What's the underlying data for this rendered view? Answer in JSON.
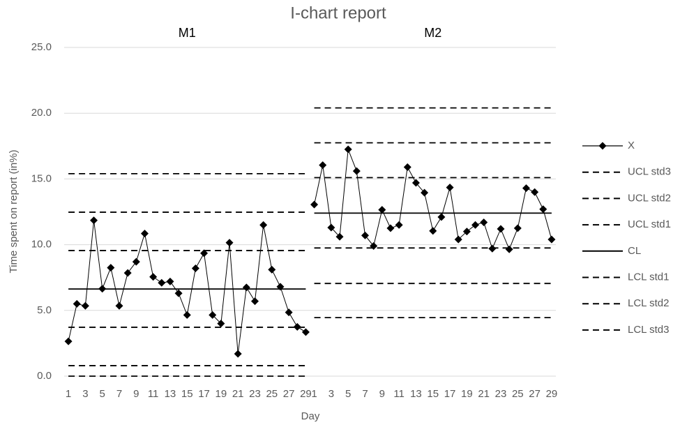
{
  "chart_data": {
    "type": "line",
    "title": "I-chart report",
    "x_label": "Day",
    "y_label": "Time spent on report (in%)",
    "groups": [
      "M1",
      "M2"
    ],
    "categories": [
      "1",
      null,
      "3",
      null,
      "5",
      null,
      "7",
      null,
      "9",
      null,
      "11",
      null,
      "13",
      null,
      "15",
      null,
      "17",
      null,
      "19",
      null,
      "21",
      null,
      "23",
      null,
      "25",
      null,
      "27",
      null,
      "29",
      "1",
      null,
      "3",
      null,
      "5",
      null,
      "7",
      null,
      "9",
      null,
      "11",
      null,
      "13",
      null,
      "15",
      null,
      "17",
      null,
      "19",
      null,
      "21",
      null,
      "23",
      null,
      "25",
      null,
      "27",
      null,
      "29"
    ],
    "ylim": [
      0,
      25
    ],
    "yticks": [
      {
        "value": 0,
        "label": "0.0"
      },
      {
        "value": 5,
        "label": "5.0"
      },
      {
        "value": 10,
        "label": "10.0"
      },
      {
        "value": 15,
        "label": "15.0"
      },
      {
        "value": 20,
        "label": "20.0"
      },
      {
        "value": 25,
        "label": "25.0"
      }
    ],
    "grid": true,
    "legend": "right",
    "series": [
      {
        "name": "X",
        "color": "#000000",
        "line_style": "solid",
        "marker": "diamond",
        "values": [
          2.65,
          5.5,
          5.35,
          11.85,
          6.65,
          8.25,
          5.35,
          7.85,
          8.7,
          10.85,
          7.55,
          7.1,
          7.2,
          6.3,
          4.65,
          8.2,
          9.35,
          4.65,
          4.0,
          10.15,
          1.7,
          6.75,
          5.7,
          11.5,
          8.1,
          6.8,
          4.85,
          3.75,
          3.35,
          13.05,
          16.05,
          11.3,
          10.6,
          17.25,
          15.6,
          10.7,
          9.9,
          12.65,
          11.25,
          11.5,
          15.9,
          14.7,
          13.95,
          11.05,
          12.1,
          14.35,
          10.4,
          11.0,
          11.5,
          11.7,
          9.7,
          11.2,
          9.65,
          11.25,
          14.3,
          14.0,
          12.7,
          10.4
        ]
      },
      {
        "name": "UCL std3",
        "color": "#000000",
        "line_style": "dashed",
        "values": [
          15.4,
          15.4,
          15.4,
          15.4,
          15.4,
          15.4,
          15.4,
          15.4,
          15.4,
          15.4,
          15.4,
          15.4,
          15.4,
          15.4,
          15.4,
          15.4,
          15.4,
          15.4,
          15.4,
          15.4,
          15.4,
          15.4,
          15.4,
          15.4,
          15.4,
          15.4,
          15.4,
          15.4,
          15.4,
          20.4,
          20.4,
          20.4,
          20.4,
          20.4,
          20.4,
          20.4,
          20.4,
          20.4,
          20.4,
          20.4,
          20.4,
          20.4,
          20.4,
          20.4,
          20.4,
          20.4,
          20.4,
          20.4,
          20.4,
          20.4,
          20.4,
          20.4,
          20.4,
          20.4,
          20.4,
          20.4,
          20.4,
          20.4
        ]
      },
      {
        "name": "UCL std2",
        "color": "#000000",
        "line_style": "dashed",
        "values": [
          12.47,
          12.47,
          12.47,
          12.47,
          12.47,
          12.47,
          12.47,
          12.47,
          12.47,
          12.47,
          12.47,
          12.47,
          12.47,
          12.47,
          12.47,
          12.47,
          12.47,
          12.47,
          12.47,
          12.47,
          12.47,
          12.47,
          12.47,
          12.47,
          12.47,
          12.47,
          12.47,
          12.47,
          12.47,
          17.75,
          17.75,
          17.75,
          17.75,
          17.75,
          17.75,
          17.75,
          17.75,
          17.75,
          17.75,
          17.75,
          17.75,
          17.75,
          17.75,
          17.75,
          17.75,
          17.75,
          17.75,
          17.75,
          17.75,
          17.75,
          17.75,
          17.75,
          17.75,
          17.75,
          17.75,
          17.75,
          17.75,
          17.75
        ]
      },
      {
        "name": "UCL std1",
        "color": "#000000",
        "line_style": "dashed",
        "values": [
          9.55,
          9.55,
          9.55,
          9.55,
          9.55,
          9.55,
          9.55,
          9.55,
          9.55,
          9.55,
          9.55,
          9.55,
          9.55,
          9.55,
          9.55,
          9.55,
          9.55,
          9.55,
          9.55,
          9.55,
          9.55,
          9.55,
          9.55,
          9.55,
          9.55,
          9.55,
          9.55,
          9.55,
          9.55,
          15.1,
          15.1,
          15.1,
          15.1,
          15.1,
          15.1,
          15.1,
          15.1,
          15.1,
          15.1,
          15.1,
          15.1,
          15.1,
          15.1,
          15.1,
          15.1,
          15.1,
          15.1,
          15.1,
          15.1,
          15.1,
          15.1,
          15.1,
          15.1,
          15.1,
          15.1,
          15.1,
          15.1,
          15.1
        ]
      },
      {
        "name": "CL",
        "color": "#000000",
        "line_style": "solid",
        "values": [
          6.63,
          6.63,
          6.63,
          6.63,
          6.63,
          6.63,
          6.63,
          6.63,
          6.63,
          6.63,
          6.63,
          6.63,
          6.63,
          6.63,
          6.63,
          6.63,
          6.63,
          6.63,
          6.63,
          6.63,
          6.63,
          6.63,
          6.63,
          6.63,
          6.63,
          6.63,
          6.63,
          6.63,
          6.63,
          12.4,
          12.4,
          12.4,
          12.4,
          12.4,
          12.4,
          12.4,
          12.4,
          12.4,
          12.4,
          12.4,
          12.4,
          12.4,
          12.4,
          12.4,
          12.4,
          12.4,
          12.4,
          12.4,
          12.4,
          12.4,
          12.4,
          12.4,
          12.4,
          12.4,
          12.4,
          12.4,
          12.4,
          12.4
        ]
      },
      {
        "name": "LCL std1",
        "color": "#000000",
        "line_style": "dashed",
        "values": [
          3.72,
          3.72,
          3.72,
          3.72,
          3.72,
          3.72,
          3.72,
          3.72,
          3.72,
          3.72,
          3.72,
          3.72,
          3.72,
          3.72,
          3.72,
          3.72,
          3.72,
          3.72,
          3.72,
          3.72,
          3.72,
          3.72,
          3.72,
          3.72,
          3.72,
          3.72,
          3.72,
          3.72,
          3.72,
          9.75,
          9.75,
          9.75,
          9.75,
          9.75,
          9.75,
          9.75,
          9.75,
          9.75,
          9.75,
          9.75,
          9.75,
          9.75,
          9.75,
          9.75,
          9.75,
          9.75,
          9.75,
          9.75,
          9.75,
          9.75,
          9.75,
          9.75,
          9.75,
          9.75,
          9.75,
          9.75,
          9.75,
          9.75
        ]
      },
      {
        "name": "LCL std2",
        "color": "#000000",
        "line_style": "dashed",
        "values": [
          0.8,
          0.8,
          0.8,
          0.8,
          0.8,
          0.8,
          0.8,
          0.8,
          0.8,
          0.8,
          0.8,
          0.8,
          0.8,
          0.8,
          0.8,
          0.8,
          0.8,
          0.8,
          0.8,
          0.8,
          0.8,
          0.8,
          0.8,
          0.8,
          0.8,
          0.8,
          0.8,
          0.8,
          0.8,
          7.05,
          7.05,
          7.05,
          7.05,
          7.05,
          7.05,
          7.05,
          7.05,
          7.05,
          7.05,
          7.05,
          7.05,
          7.05,
          7.05,
          7.05,
          7.05,
          7.05,
          7.05,
          7.05,
          7.05,
          7.05,
          7.05,
          7.05,
          7.05,
          7.05,
          7.05,
          7.05,
          7.05,
          7.05
        ]
      },
      {
        "name": "LCL std3",
        "color": "#000000",
        "line_style": "dashed",
        "values": [
          0,
          0,
          0,
          0,
          0,
          0,
          0,
          0,
          0,
          0,
          0,
          0,
          0,
          0,
          0,
          0,
          0,
          0,
          0,
          0,
          0,
          0,
          0,
          0,
          0,
          0,
          0,
          0,
          0,
          4.45,
          4.45,
          4.45,
          4.45,
          4.45,
          4.45,
          4.45,
          4.45,
          4.45,
          4.45,
          4.45,
          4.45,
          4.45,
          4.45,
          4.45,
          4.45,
          4.45,
          4.45,
          4.45,
          4.45,
          4.45,
          4.45,
          4.45,
          4.45,
          4.45,
          4.45,
          4.45,
          4.45,
          4.45
        ]
      }
    ]
  }
}
